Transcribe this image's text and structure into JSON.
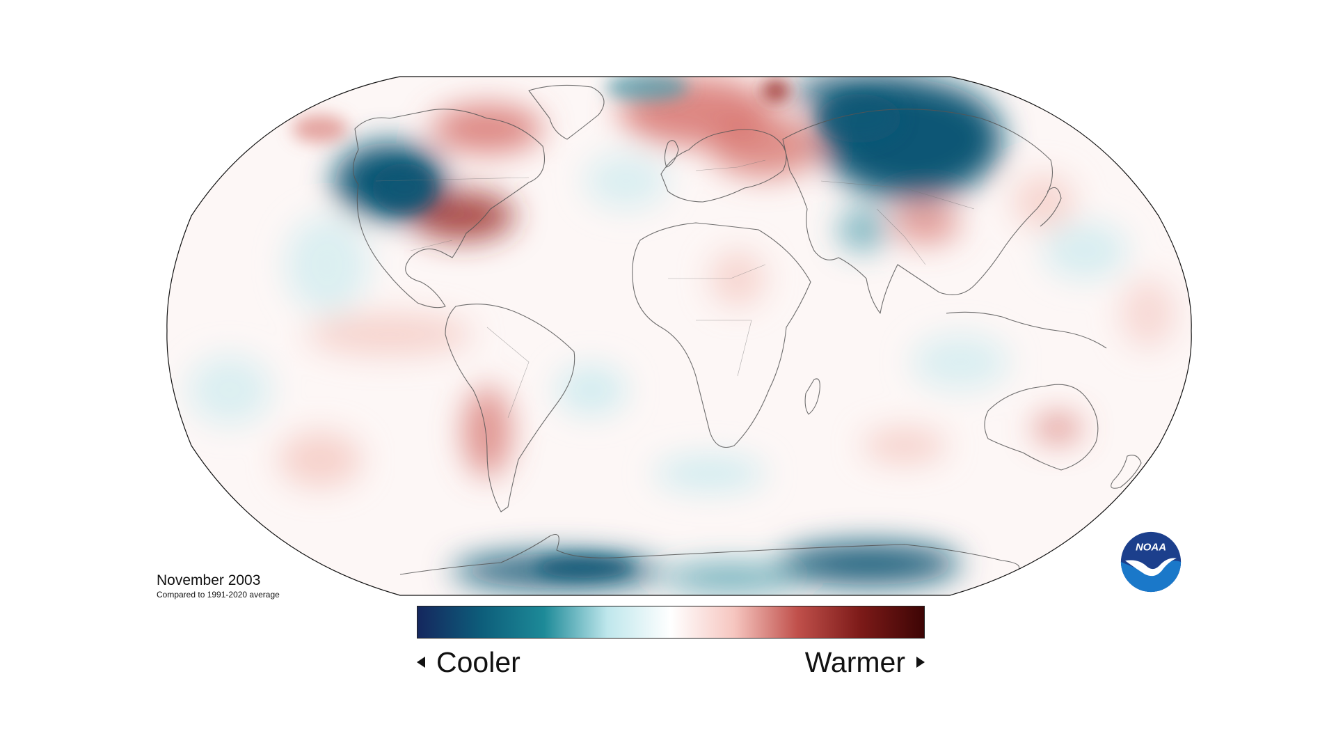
{
  "map": {
    "title": "November 2003",
    "subtitle": "Compared to 1991-2020 average",
    "projection": "Robinson",
    "variable": "temperature anomaly"
  },
  "legend": {
    "left_label": "Cooler",
    "right_label": "Warmer",
    "colors": [
      "#15275e",
      "#0d5d7a",
      "#1d8a98",
      "#bfe7ec",
      "#ffffff",
      "#f6c6c0",
      "#c0504b",
      "#7c1a18",
      "#3d0505"
    ]
  },
  "logo": {
    "text": "NOAA",
    "colors": {
      "outer": "#1c3f8c",
      "inner": "#1a78c9",
      "bird": "#ffffff"
    }
  },
  "colors": {
    "cool_strong": "#0b5775",
    "cool_mid": "#3f97a8",
    "cool_light": "#cdebef",
    "warm_light": "#f5cdc7",
    "warm_mid": "#d46c66",
    "warm_strong": "#9c2e2b",
    "coastline": "#555555",
    "map_border": "#111111"
  }
}
